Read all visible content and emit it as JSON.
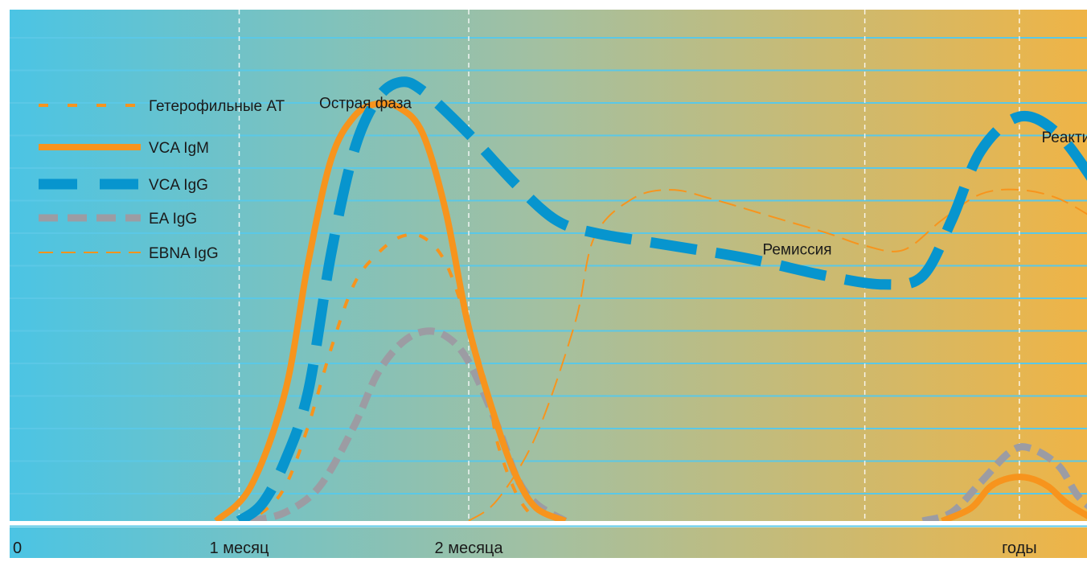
{
  "chart_data": {
    "type": "line",
    "title": "",
    "xlabel": "",
    "ylabel": "",
    "x_ticks": [
      {
        "x": 0,
        "label": "0"
      },
      {
        "x": 1,
        "label": "1 месяц"
      },
      {
        "x": 2,
        "label": "2 месяца"
      },
      {
        "x": 4.8,
        "label": "годы"
      }
    ],
    "phase_labels": [
      {
        "text": "Острая фаза",
        "x": 1.55,
        "y": 0.96
      },
      {
        "text": "Ремиссия",
        "x": 3.65,
        "y": 0.62
      },
      {
        "text": "Реактивация",
        "x": 5.15,
        "y": 0.88
      }
    ],
    "legend": {
      "position": "left"
    },
    "grid": {
      "horizontal": true,
      "vertical_dashed_at": [
        1,
        2,
        4,
        4.8
      ]
    },
    "colors": {
      "background_left": "#4BC4E4",
      "background_mid": "#A4C0A0",
      "background_right": "#EFB446",
      "orange": "#F7941D",
      "blue": "#0795CE",
      "gray": "#9C9CA3",
      "gridline": "#5BC8E6"
    },
    "series": [
      {
        "name": "Гетерофильные АТ",
        "style": "orange-dotted",
        "points": [
          [
            1.0,
            0.0
          ],
          [
            1.1,
            0.02
          ],
          [
            1.2,
            0.08
          ],
          [
            1.3,
            0.22
          ],
          [
            1.4,
            0.4
          ],
          [
            1.5,
            0.55
          ],
          [
            1.6,
            0.62
          ],
          [
            1.7,
            0.66
          ],
          [
            1.8,
            0.66
          ],
          [
            1.9,
            0.6
          ],
          [
            2.0,
            0.45
          ],
          [
            2.05,
            0.3
          ],
          [
            2.1,
            0.18
          ],
          [
            2.2,
            0.06
          ],
          [
            2.3,
            0.0
          ]
        ]
      },
      {
        "name": "VCA IgM",
        "style": "orange-solid",
        "points": [
          [
            0.9,
            0.0
          ],
          [
            1.05,
            0.08
          ],
          [
            1.2,
            0.3
          ],
          [
            1.3,
            0.6
          ],
          [
            1.4,
            0.84
          ],
          [
            1.5,
            0.94
          ],
          [
            1.6,
            0.97
          ],
          [
            1.7,
            0.96
          ],
          [
            1.8,
            0.9
          ],
          [
            1.9,
            0.72
          ],
          [
            2.0,
            0.45
          ],
          [
            2.1,
            0.22
          ],
          [
            2.2,
            0.1
          ],
          [
            2.3,
            0.03
          ],
          [
            2.45,
            0.0
          ]
        ]
      },
      {
        "name": "VCA IgG",
        "style": "blue-dashed",
        "points": [
          [
            1.0,
            0.0
          ],
          [
            1.1,
            0.04
          ],
          [
            1.2,
            0.14
          ],
          [
            1.3,
            0.3
          ],
          [
            1.4,
            0.62
          ],
          [
            1.5,
            0.86
          ],
          [
            1.6,
            0.98
          ],
          [
            1.7,
            1.02
          ],
          [
            1.8,
            1.0
          ],
          [
            2.0,
            0.9
          ],
          [
            2.2,
            0.78
          ],
          [
            2.4,
            0.7
          ],
          [
            2.6,
            0.67
          ],
          [
            3.0,
            0.64
          ],
          [
            3.4,
            0.61
          ],
          [
            3.8,
            0.57
          ],
          [
            4.1,
            0.55
          ],
          [
            4.3,
            0.57
          ],
          [
            4.45,
            0.7
          ],
          [
            4.6,
            0.86
          ],
          [
            4.8,
            0.94
          ],
          [
            5.0,
            0.9
          ],
          [
            5.2,
            0.78
          ]
        ]
      },
      {
        "name": "EA IgG",
        "style": "gray-dashed",
        "points": [
          [
            1.05,
            0.0
          ],
          [
            1.2,
            0.02
          ],
          [
            1.35,
            0.08
          ],
          [
            1.5,
            0.22
          ],
          [
            1.6,
            0.34
          ],
          [
            1.7,
            0.41
          ],
          [
            1.8,
            0.44
          ],
          [
            1.9,
            0.43
          ],
          [
            2.0,
            0.37
          ],
          [
            2.1,
            0.22
          ],
          [
            2.2,
            0.1
          ],
          [
            2.3,
            0.04
          ],
          [
            2.45,
            0.0
          ]
        ]
      },
      {
        "name": "EBNA IgG",
        "style": "orange-thin-dashed",
        "points": [
          [
            2.0,
            0.0
          ],
          [
            2.1,
            0.05
          ],
          [
            2.3,
            0.2
          ],
          [
            2.5,
            0.46
          ],
          [
            2.6,
            0.66
          ],
          [
            2.8,
            0.75
          ],
          [
            3.0,
            0.77
          ],
          [
            3.2,
            0.75
          ],
          [
            3.5,
            0.71
          ],
          [
            3.8,
            0.67
          ],
          [
            4.0,
            0.64
          ],
          [
            4.2,
            0.63
          ],
          [
            4.4,
            0.7
          ],
          [
            4.6,
            0.76
          ],
          [
            4.8,
            0.77
          ],
          [
            5.0,
            0.75
          ],
          [
            5.2,
            0.7
          ]
        ]
      },
      {
        "name": "EA IgG (reactivation)",
        "style": "gray-dashed",
        "legend": false,
        "points": [
          [
            4.3,
            0.0
          ],
          [
            4.45,
            0.02
          ],
          [
            4.6,
            0.09
          ],
          [
            4.75,
            0.16
          ],
          [
            4.85,
            0.17
          ],
          [
            5.0,
            0.13
          ],
          [
            5.1,
            0.06
          ],
          [
            5.2,
            0.02
          ]
        ]
      },
      {
        "name": "VCA IgM (reactivation)",
        "style": "orange-solid",
        "legend": false,
        "points": [
          [
            4.4,
            0.0
          ],
          [
            4.55,
            0.03
          ],
          [
            4.65,
            0.08
          ],
          [
            4.75,
            0.1
          ],
          [
            4.85,
            0.1
          ],
          [
            4.95,
            0.08
          ],
          [
            5.05,
            0.04
          ],
          [
            5.2,
            0.0
          ]
        ]
      }
    ],
    "xlim": [
      0,
      5.2
    ],
    "ylim": [
      0,
      1.05
    ]
  }
}
